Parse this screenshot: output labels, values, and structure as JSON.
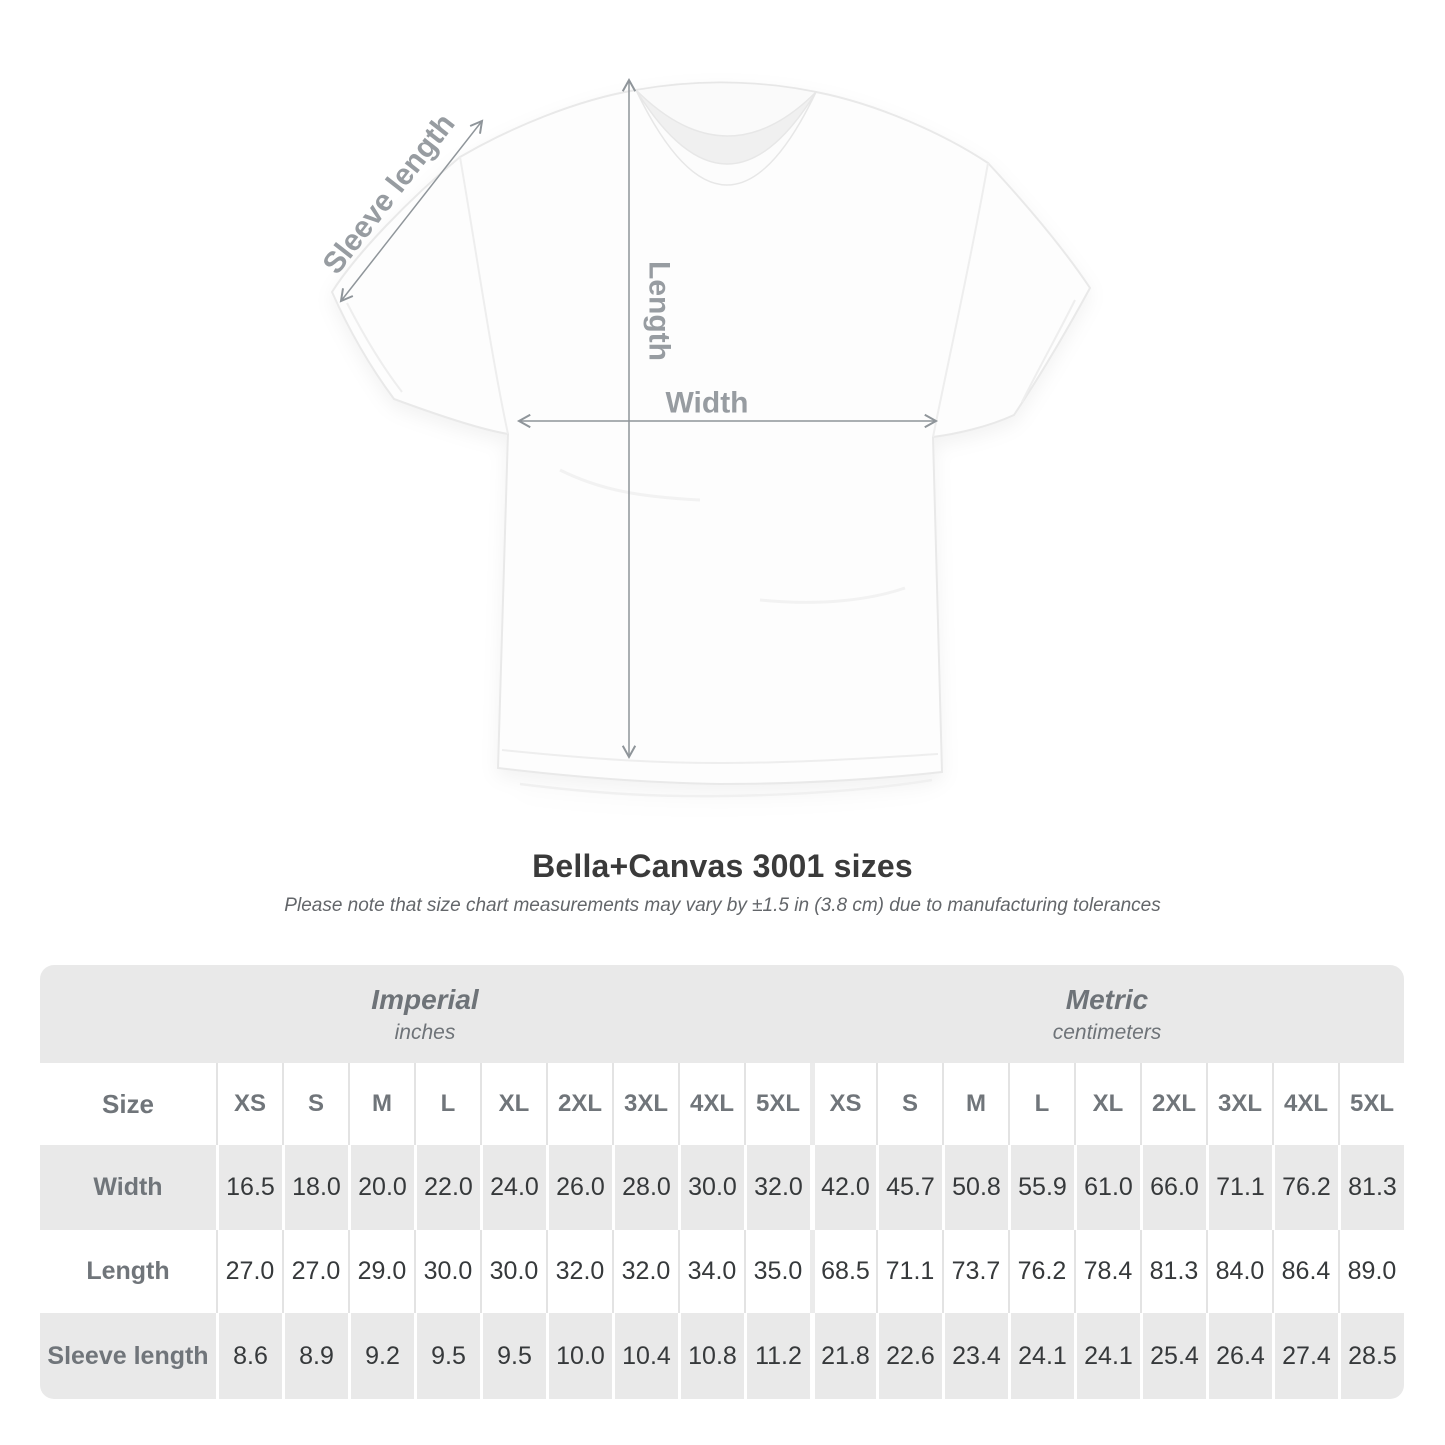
{
  "figure": {
    "sleeve_label": "Sleeve length",
    "length_label": "Length",
    "width_label": "Width"
  },
  "title": "Bella+Canvas 3001 sizes",
  "subtitle": "Please note that size chart measurements may vary by ±1.5 in (3.8 cm) due to manufacturing tolerances",
  "table": {
    "sections": [
      {
        "name": "Imperial",
        "unit": "inches"
      },
      {
        "name": "Metric",
        "unit": "centimeters"
      }
    ],
    "corner_label": "Size",
    "sizes": [
      "XS",
      "S",
      "M",
      "L",
      "XL",
      "2XL",
      "3XL",
      "4XL",
      "5XL"
    ],
    "rows": [
      {
        "label": "Width",
        "imperial": [
          "16.5",
          "18.0",
          "20.0",
          "22.0",
          "24.0",
          "26.0",
          "28.0",
          "30.0",
          "32.0"
        ],
        "metric": [
          "42.0",
          "45.7",
          "50.8",
          "55.9",
          "61.0",
          "66.0",
          "71.1",
          "76.2",
          "81.3"
        ]
      },
      {
        "label": "Length",
        "imperial": [
          "27.0",
          "27.0",
          "29.0",
          "30.0",
          "30.0",
          "32.0",
          "32.0",
          "34.0",
          "35.0"
        ],
        "metric": [
          "68.5",
          "71.1",
          "73.7",
          "76.2",
          "78.4",
          "81.3",
          "84.0",
          "86.4",
          "89.0"
        ]
      },
      {
        "label": "Sleeve length",
        "imperial": [
          "8.6",
          "8.9",
          "9.2",
          "9.5",
          "9.5",
          "10.0",
          "10.4",
          "10.8",
          "11.2"
        ],
        "metric": [
          "21.8",
          "22.6",
          "23.4",
          "24.1",
          "24.1",
          "25.4",
          "26.4",
          "27.4",
          "28.5"
        ]
      }
    ]
  },
  "colors": {
    "table_band": "#e9e9e9",
    "label_text": "#70757a",
    "value_text": "#36393b",
    "diagram_label": "#979ca1",
    "title_text": "#3a3a3a"
  },
  "chart_data": {
    "type": "table",
    "title": "Bella+Canvas 3001 sizes",
    "note": "Size chart measurements may vary by ±1.5 in (3.8 cm) due to manufacturing tolerances",
    "units": [
      "inches",
      "centimeters"
    ],
    "sizes": [
      "XS",
      "S",
      "M",
      "L",
      "XL",
      "2XL",
      "3XL",
      "4XL",
      "5XL"
    ],
    "measurements": [
      {
        "name": "Width",
        "inches": [
          16.5,
          18.0,
          20.0,
          22.0,
          24.0,
          26.0,
          28.0,
          30.0,
          32.0
        ],
        "centimeters": [
          42.0,
          45.7,
          50.8,
          55.9,
          61.0,
          66.0,
          71.1,
          76.2,
          81.3
        ]
      },
      {
        "name": "Length",
        "inches": [
          27.0,
          27.0,
          29.0,
          30.0,
          30.0,
          32.0,
          32.0,
          34.0,
          35.0
        ],
        "centimeters": [
          68.5,
          71.1,
          73.7,
          76.2,
          78.4,
          81.3,
          84.0,
          86.4,
          89.0
        ]
      },
      {
        "name": "Sleeve length",
        "inches": [
          8.6,
          8.9,
          9.2,
          9.5,
          9.5,
          10.0,
          10.4,
          10.8,
          11.2
        ],
        "centimeters": [
          21.8,
          22.6,
          23.4,
          24.1,
          24.1,
          25.4,
          26.4,
          27.4,
          28.5
        ]
      }
    ]
  }
}
